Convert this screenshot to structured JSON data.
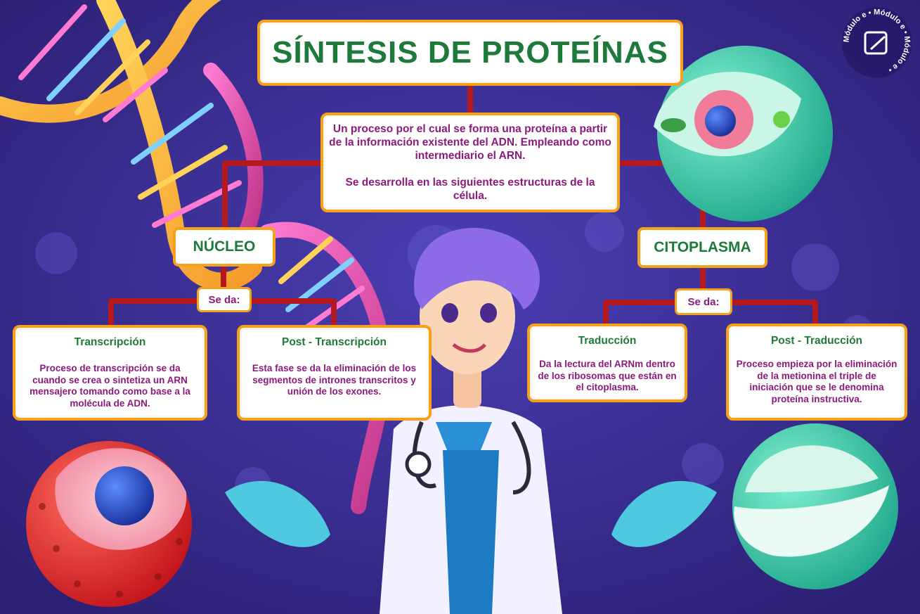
{
  "title": "SÍNTESIS DE PROTEÍNAS",
  "intro": {
    "line1": "Un proceso por el cual se forma una proteína a partir de la información existente del ADN. Empleando como intermediario el ARN.",
    "line2": "Se desarrolla en las siguientes estructuras de la célula."
  },
  "branches": {
    "left": {
      "label": "NÚCLEO",
      "connector": "Se da:",
      "cards": [
        {
          "title": "Transcripción",
          "text": "Proceso de transcripción se da cuando se crea o sintetiza un ARN mensajero tomando como base a la molécula de ADN."
        },
        {
          "title": "Post - Transcripción",
          "text": "Esta fase se da la eliminación de los segmentos de intrones transcritos y unión de los exones."
        }
      ]
    },
    "right": {
      "label": "CITOPLASMA",
      "connector": "Se da:",
      "cards": [
        {
          "title": "Traducción",
          "text": "Da la lectura del ARNm dentro de los ribosomas que están en el citoplasma."
        },
        {
          "title": "Post - Traducción",
          "text": "Proceso empieza por la eliminación de la metionina el triple de iniciación que se le denomina proteína instructiva."
        }
      ]
    }
  },
  "logo": {
    "text": "Módulo e • Módulo e • Módulo e •"
  },
  "colors": {
    "background": "#3a2a8a",
    "border": "#f5a11c",
    "title": "#1d7a3a",
    "text": "#8c1a7d",
    "connector": "#b3191f"
  }
}
